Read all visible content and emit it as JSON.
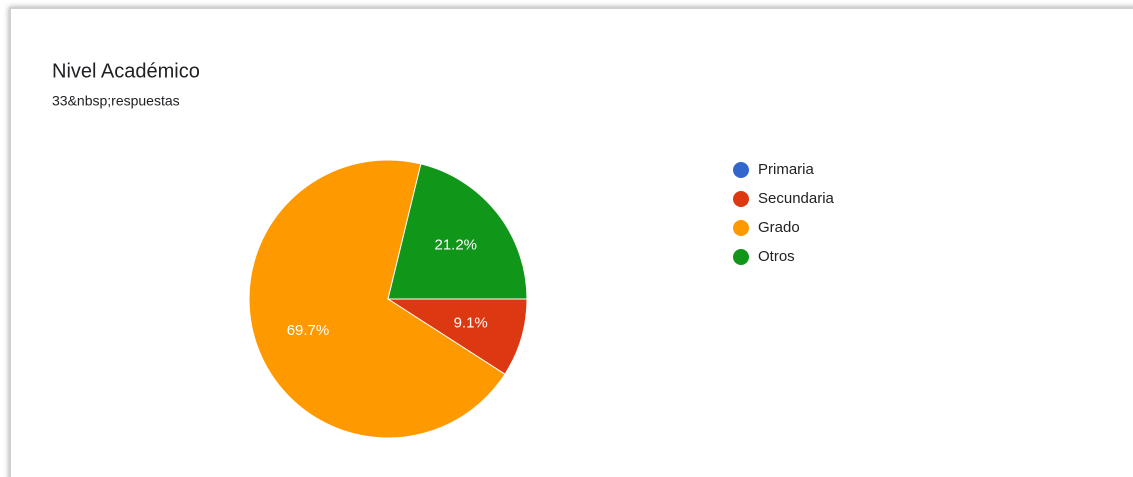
{
  "chart_data": {
    "type": "pie",
    "title": "Nivel Académico",
    "subtitle": "33&nbsp;respuestas",
    "categories": [
      "Primaria",
      "Secundaria",
      "Grado",
      "Otros"
    ],
    "values": [
      0,
      9.1,
      69.7,
      21.2
    ],
    "value_labels": [
      null,
      "9.1%",
      "69.7%",
      "21.2%"
    ],
    "colors": [
      "#3366cc",
      "#dc3912",
      "#ff9900",
      "#109618"
    ],
    "legend": "right"
  }
}
